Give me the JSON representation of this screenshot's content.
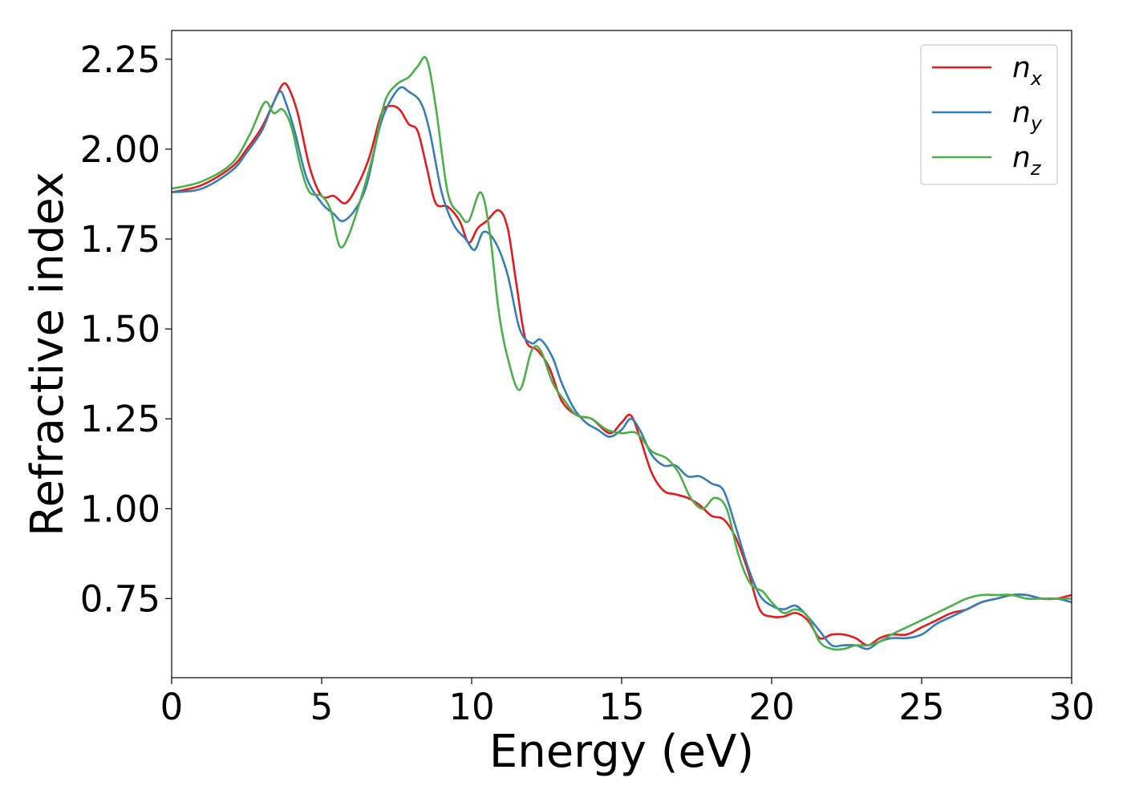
{
  "chart_data": {
    "type": "line",
    "title": "",
    "xlabel": "Energy (eV)",
    "ylabel": "Refractive index",
    "xlim": [
      0,
      30
    ],
    "ylim": [
      0.53,
      2.33
    ],
    "xticks": [
      0,
      5,
      10,
      15,
      20,
      25,
      30
    ],
    "xtick_labels": [
      "0",
      "5",
      "10",
      "15",
      "20",
      "25",
      "30"
    ],
    "yticks": [
      0.75,
      1.0,
      1.25,
      1.5,
      1.75,
      2.0,
      2.25
    ],
    "ytick_labels": [
      "0.75",
      "1.00",
      "1.25",
      "1.50",
      "1.75",
      "2.00",
      "2.25"
    ],
    "grid": false,
    "legend_position": "top-right",
    "series": [
      {
        "name": "n_x",
        "label_main": "n",
        "label_sub": "x",
        "color": "#e41a1c",
        "x": [
          0,
          1,
          2,
          2.5,
          3,
          3.4,
          3.7,
          3.9,
          4.2,
          4.6,
          5.0,
          5.4,
          5.8,
          6.2,
          6.6,
          7.0,
          7.3,
          7.6,
          7.9,
          8.2,
          8.5,
          8.8,
          9.2,
          9.6,
          9.9,
          10.2,
          10.5,
          10.9,
          11.2,
          11.5,
          11.8,
          12.2,
          12.6,
          13.0,
          13.5,
          14.0,
          14.6,
          15.0,
          15.3,
          15.6,
          16.0,
          16.4,
          16.8,
          17.2,
          17.6,
          18.0,
          18.4,
          18.8,
          19.2,
          19.6,
          20.0,
          20.4,
          20.8,
          21.2,
          21.6,
          22.0,
          22.4,
          22.8,
          23.2,
          23.6,
          24.0,
          24.5,
          25.0,
          25.5,
          26.0,
          26.5,
          27.0,
          27.5,
          28.0,
          28.5,
          29.0,
          29.5,
          30.0
        ],
        "y": [
          1.88,
          1.9,
          1.95,
          2.0,
          2.06,
          2.13,
          2.18,
          2.17,
          2.1,
          1.95,
          1.87,
          1.87,
          1.85,
          1.9,
          1.98,
          2.1,
          2.12,
          2.11,
          2.07,
          2.05,
          1.95,
          1.85,
          1.84,
          1.8,
          1.74,
          1.78,
          1.8,
          1.83,
          1.78,
          1.62,
          1.47,
          1.44,
          1.39,
          1.3,
          1.26,
          1.25,
          1.21,
          1.24,
          1.26,
          1.2,
          1.1,
          1.05,
          1.04,
          1.03,
          1.01,
          0.98,
          0.97,
          0.92,
          0.83,
          0.72,
          0.7,
          0.7,
          0.71,
          0.69,
          0.64,
          0.65,
          0.65,
          0.64,
          0.62,
          0.64,
          0.65,
          0.65,
          0.67,
          0.69,
          0.71,
          0.72,
          0.74,
          0.75,
          0.76,
          0.76,
          0.75,
          0.75,
          0.76
        ]
      },
      {
        "name": "n_y",
        "label_main": "n",
        "label_sub": "y",
        "color": "#377eb8",
        "x": [
          0,
          1,
          2,
          2.5,
          3,
          3.3,
          3.6,
          3.8,
          4.1,
          4.5,
          5.0,
          5.4,
          5.7,
          6.1,
          6.5,
          6.9,
          7.2,
          7.6,
          7.9,
          8.3,
          8.6,
          9.0,
          9.4,
          9.8,
          10.1,
          10.4,
          10.8,
          11.2,
          11.6,
          12.0,
          12.3,
          12.7,
          13.0,
          13.4,
          13.8,
          14.2,
          14.6,
          15.0,
          15.3,
          15.6,
          16.0,
          16.4,
          16.8,
          17.2,
          17.6,
          18.0,
          18.4,
          18.8,
          19.2,
          19.6,
          20.0,
          20.4,
          20.8,
          21.2,
          21.6,
          22.0,
          22.4,
          22.8,
          23.2,
          23.6,
          24.0,
          24.5,
          25.0,
          25.5,
          26.0,
          26.5,
          27.0,
          27.5,
          28.0,
          28.5,
          29.0,
          29.5,
          30.0
        ],
        "y": [
          1.88,
          1.89,
          1.94,
          1.99,
          2.05,
          2.11,
          2.16,
          2.13,
          2.05,
          1.92,
          1.85,
          1.82,
          1.8,
          1.83,
          1.9,
          2.05,
          2.12,
          2.17,
          2.16,
          2.13,
          2.05,
          1.88,
          1.79,
          1.75,
          1.72,
          1.77,
          1.74,
          1.65,
          1.5,
          1.46,
          1.47,
          1.42,
          1.35,
          1.28,
          1.24,
          1.22,
          1.2,
          1.22,
          1.25,
          1.22,
          1.15,
          1.12,
          1.12,
          1.09,
          1.09,
          1.07,
          1.05,
          0.95,
          0.84,
          0.76,
          0.73,
          0.72,
          0.73,
          0.7,
          0.66,
          0.62,
          0.62,
          0.62,
          0.61,
          0.63,
          0.64,
          0.64,
          0.65,
          0.68,
          0.7,
          0.72,
          0.74,
          0.75,
          0.76,
          0.76,
          0.75,
          0.75,
          0.74
        ]
      },
      {
        "name": "n_z",
        "label_main": "n",
        "label_sub": "z",
        "color": "#4daf4a",
        "x": [
          0,
          1,
          2,
          2.6,
          3.1,
          3.4,
          3.7,
          4.0,
          4.3,
          4.6,
          5.0,
          5.3,
          5.6,
          5.9,
          6.3,
          6.7,
          7.1,
          7.5,
          7.9,
          8.2,
          8.5,
          8.8,
          9.2,
          9.6,
          9.9,
          10.3,
          10.6,
          10.9,
          11.2,
          11.6,
          12.0,
          12.3,
          12.7,
          13.1,
          13.5,
          14.0,
          14.5,
          15.0,
          15.5,
          16.0,
          16.5,
          16.9,
          17.3,
          17.7,
          18.1,
          18.5,
          18.9,
          19.3,
          19.7,
          20.0,
          20.4,
          20.8,
          21.2,
          21.6,
          22.0,
          22.4,
          22.8,
          23.2,
          23.6,
          24.0,
          24.5,
          25.0,
          25.5,
          26.0,
          26.5,
          27.0,
          27.5,
          28.0,
          28.5,
          29.0,
          29.5,
          30.0
        ],
        "y": [
          1.89,
          1.91,
          1.96,
          2.04,
          2.13,
          2.1,
          2.11,
          2.06,
          1.95,
          1.88,
          1.87,
          1.83,
          1.73,
          1.76,
          1.86,
          1.98,
          2.13,
          2.18,
          2.2,
          2.23,
          2.25,
          2.12,
          1.88,
          1.82,
          1.8,
          1.88,
          1.77,
          1.55,
          1.42,
          1.33,
          1.44,
          1.44,
          1.35,
          1.3,
          1.26,
          1.25,
          1.22,
          1.21,
          1.21,
          1.16,
          1.14,
          1.1,
          1.03,
          1.0,
          1.03,
          1.0,
          0.87,
          0.79,
          0.77,
          0.74,
          0.71,
          0.72,
          0.7,
          0.63,
          0.61,
          0.61,
          0.62,
          0.62,
          0.63,
          0.65,
          0.67,
          0.69,
          0.71,
          0.73,
          0.75,
          0.76,
          0.76,
          0.76,
          0.75,
          0.75,
          0.75,
          0.75
        ]
      }
    ]
  }
}
